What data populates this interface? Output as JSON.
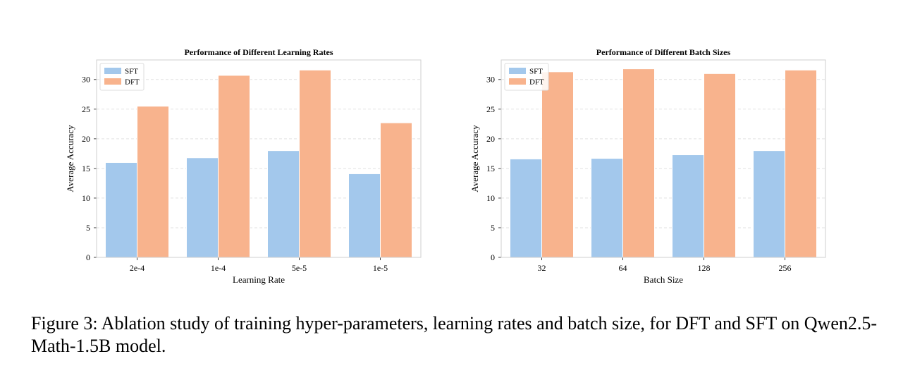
{
  "chart_data": [
    {
      "type": "bar",
      "title": "Performance of Different Learning Rates",
      "xlabel": "Learning Rate",
      "ylabel": "Average Accuracy",
      "categories": [
        "2e-4",
        "1e-4",
        "5e-5",
        "1e-5"
      ],
      "series": [
        {
          "name": "SFT",
          "values": [
            16.0,
            16.8,
            18.0,
            14.1
          ],
          "color": "#a3c8ec"
        },
        {
          "name": "DFT",
          "values": [
            25.5,
            30.7,
            31.6,
            22.7
          ],
          "color": "#f8b38d"
        }
      ],
      "ylim": [
        0,
        33.3
      ],
      "yticks": [
        0,
        5,
        10,
        15,
        20,
        25,
        30
      ],
      "grid": true,
      "legend": "top-left"
    },
    {
      "type": "bar",
      "title": "Performance of Different Batch Sizes",
      "xlabel": "Batch Size",
      "ylabel": "Average Accuracy",
      "categories": [
        "32",
        "64",
        "128",
        "256"
      ],
      "series": [
        {
          "name": "SFT",
          "values": [
            16.6,
            16.7,
            17.3,
            18.0
          ],
          "color": "#a3c8ec"
        },
        {
          "name": "DFT",
          "values": [
            31.3,
            31.8,
            31.0,
            31.6
          ],
          "color": "#f8b38d"
        }
      ],
      "ylim": [
        0,
        33.3
      ],
      "yticks": [
        0,
        5,
        10,
        15,
        20,
        25,
        30
      ],
      "grid": true,
      "legend": "top-left"
    }
  ],
  "caption": "Figure 3: Ablation study of training hyper-parameters, learning rates and batch size, for DFT and SFT on Qwen2.5-Math-1.5B model."
}
